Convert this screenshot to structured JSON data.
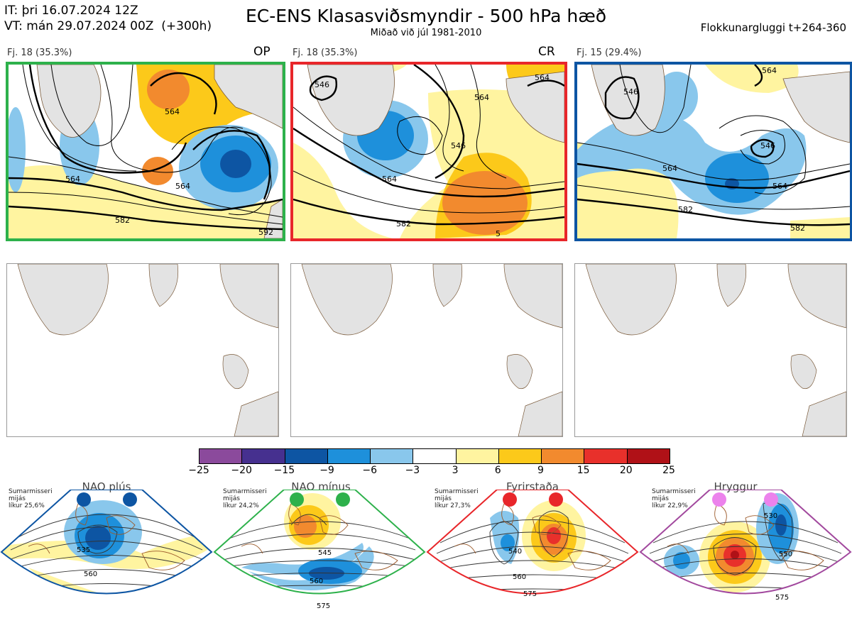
{
  "header": {
    "init_line": "IT: þri 16.07.2024 12Z",
    "valid_line": "VT: mán 29.07.2024 00Z  (+300h)",
    "title": "EC-ENS Klasasviðsmyndir - 500 hPa hæð",
    "subtitle": "Miðað við júl 1981-2010",
    "window": "Flokkunargluggi t+264-360"
  },
  "clusters": [
    {
      "label": "Fj. 18 (35.3%)",
      "tag": "OP",
      "color": "#2db14b",
      "contours": [
        "564",
        "564",
        "564",
        "582",
        "592"
      ]
    },
    {
      "label": "Fj. 18 (35.3%)",
      "tag": "CR",
      "color": "#e8262a",
      "contours": [
        "546",
        "546",
        "564",
        "564",
        "564",
        "582",
        "5"
      ]
    },
    {
      "label": "Fj. 15 (29.4%)",
      "tag": "",
      "color": "#0d55a3",
      "contours": [
        "546",
        "546",
        "564",
        "564",
        "564",
        "582",
        "582"
      ]
    }
  ],
  "colorbar": {
    "ticks": [
      "−25",
      "−20",
      "−15",
      "−9",
      "−6",
      "−3",
      "3",
      "6",
      "9",
      "15",
      "20",
      "25"
    ],
    "colors": [
      "#8b4a9c",
      "#46308f",
      "#0d55a3",
      "#1e90db",
      "#89c7ec",
      "#ffffff",
      "#fff4a0",
      "#fcc91a",
      "#f28a2e",
      "#e8302b",
      "#b01117"
    ]
  },
  "regimes": [
    {
      "title": "NAO plús",
      "season": "Sumarmisseri",
      "mean": "mijás",
      "prob": "líkur 25,6%",
      "color": "#0d55a3",
      "contours": [
        "535",
        "560"
      ]
    },
    {
      "title": "NAO mínus",
      "season": "Sumarmisseri",
      "mean": "mijás",
      "prob": "líkur 24,2%",
      "color": "#2db14b",
      "contours": [
        "545",
        "560",
        "575"
      ]
    },
    {
      "title": "Fyrirstaða",
      "season": "Sumarmisseri",
      "mean": "mijás",
      "prob": "líkur 27,3%",
      "color": "#e8262a",
      "contours": [
        "540",
        "560",
        "575"
      ]
    },
    {
      "title": "Hryggur",
      "season": "Sumarmisseri",
      "mean": "mijás",
      "prob": "líkur 22,9%",
      "color": "#a2499e",
      "contours": [
        "530",
        "550",
        "575"
      ]
    }
  ]
}
